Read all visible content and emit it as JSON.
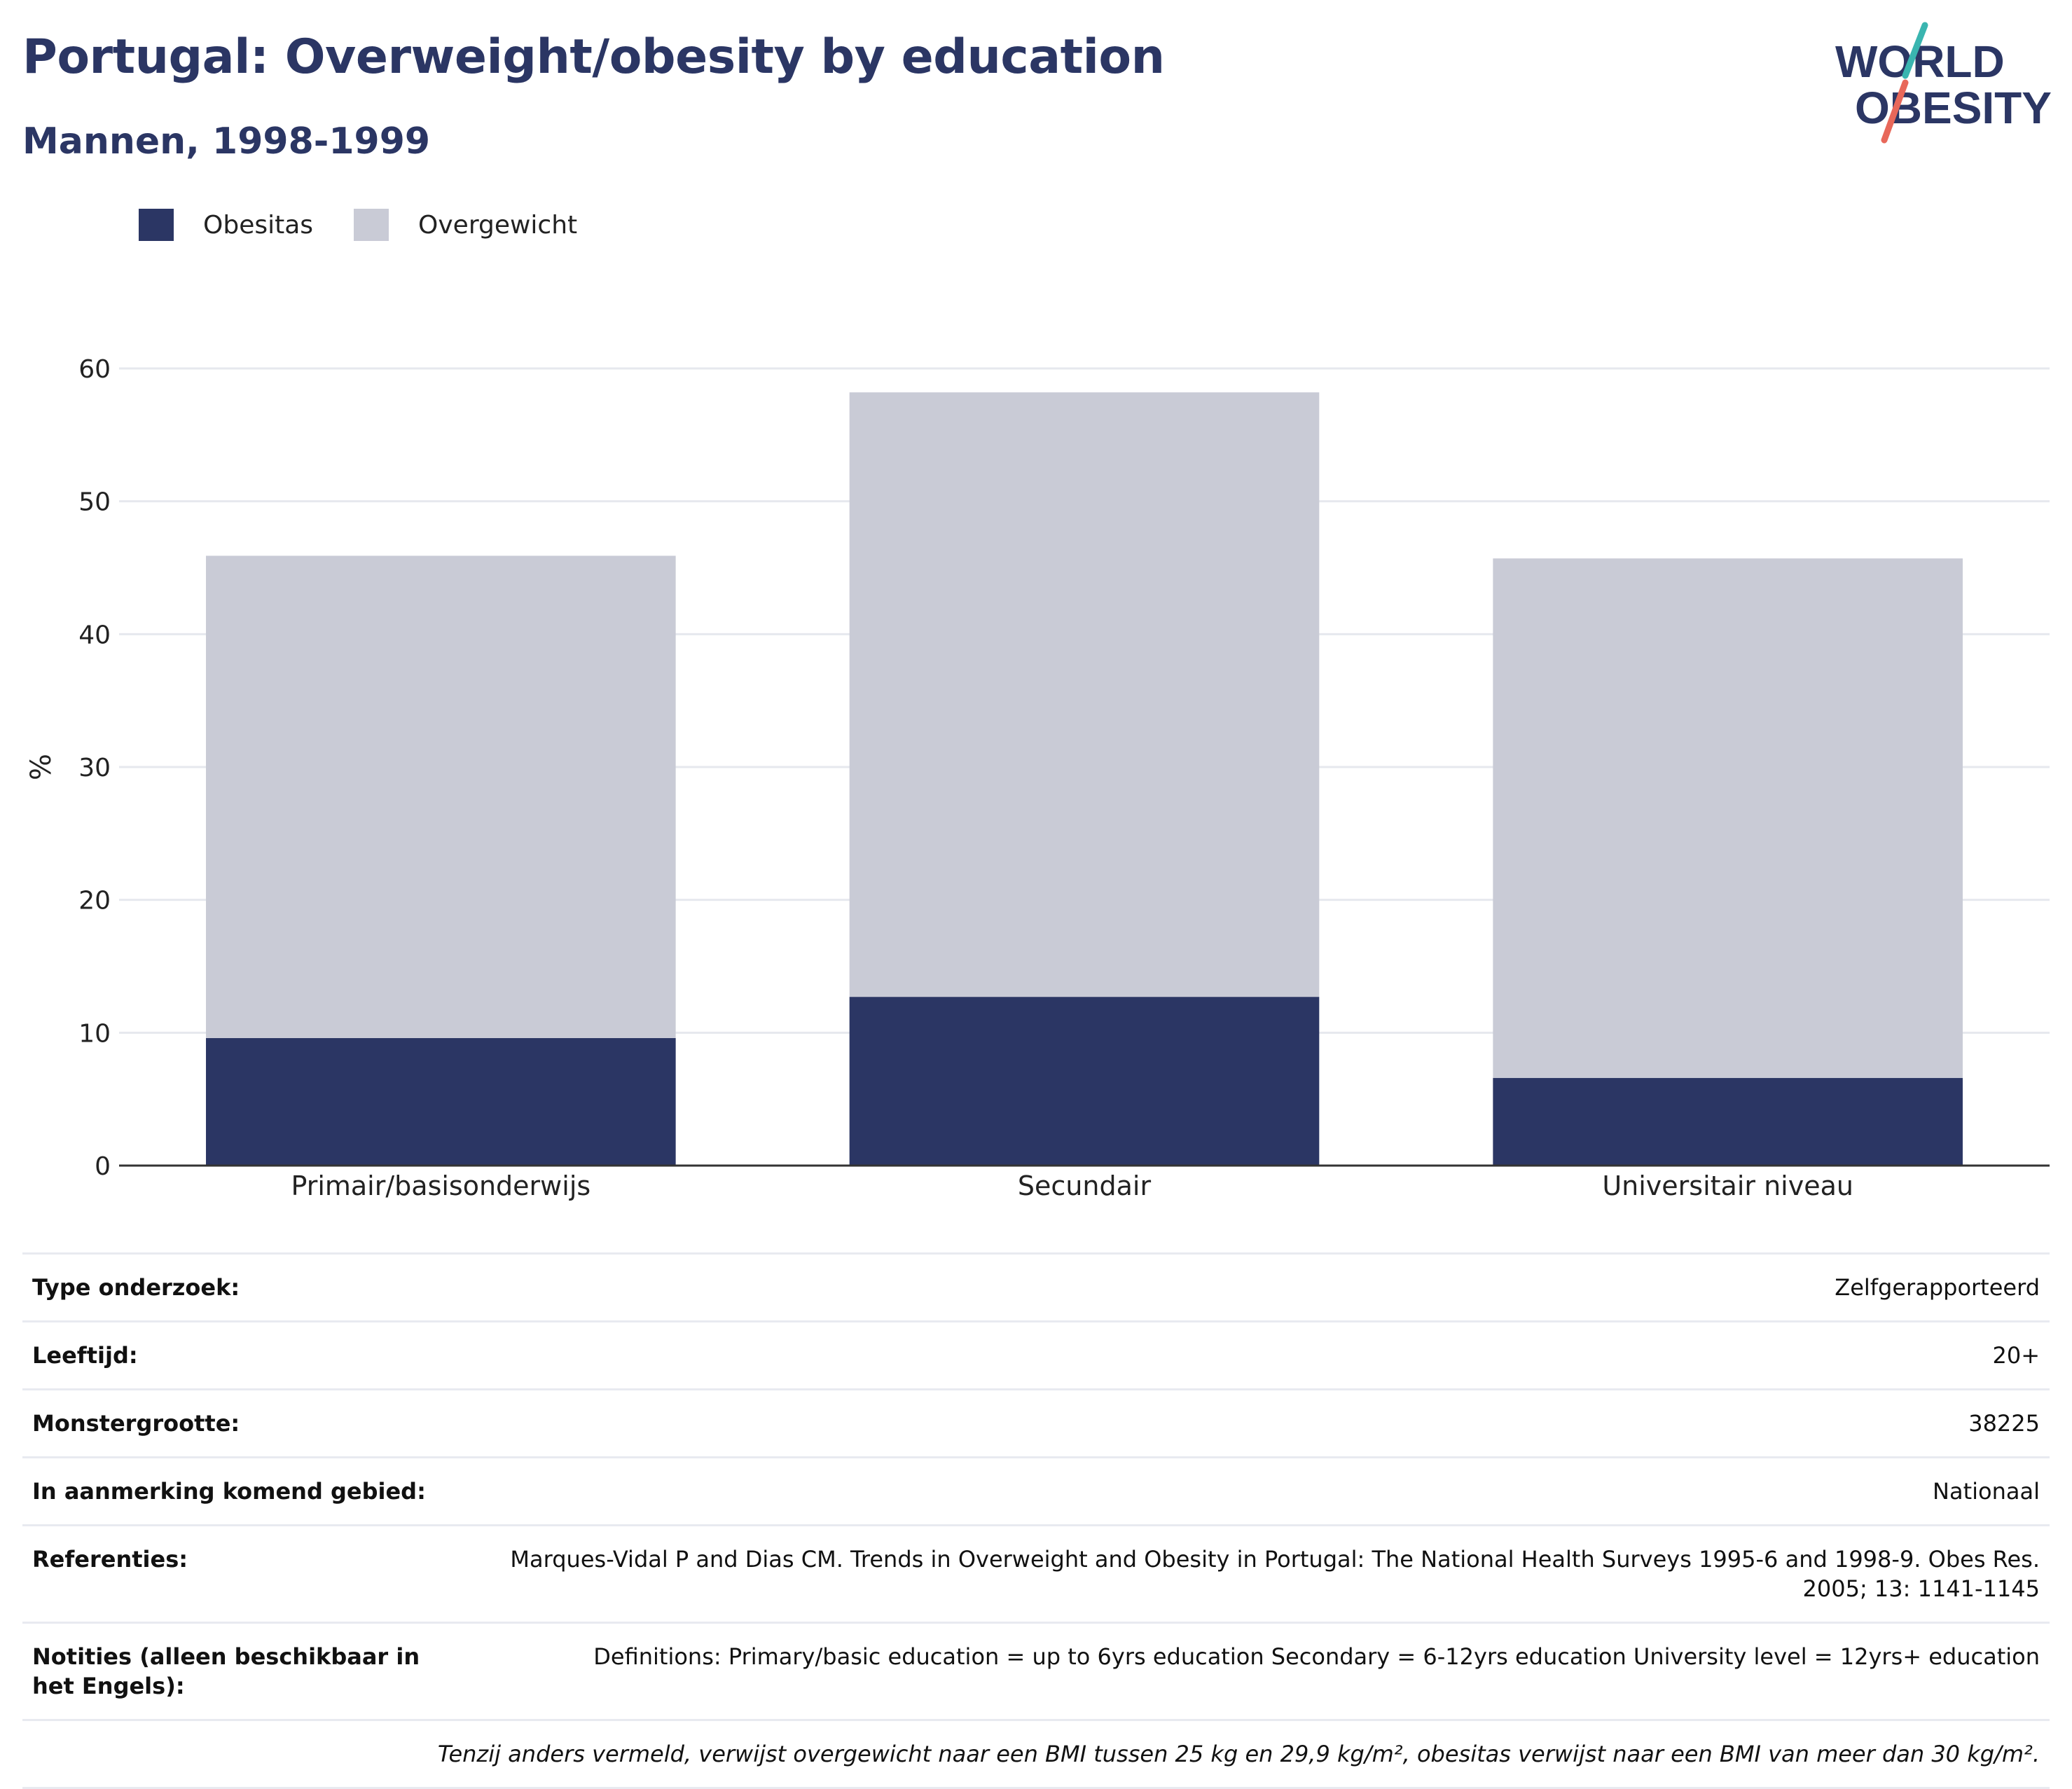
{
  "header": {
    "title": "Portugal: Overweight/obesity by education",
    "subtitle": "Mannen, 1998-1999"
  },
  "logo": {
    "line1": "WORLD",
    "line2": "OBESITY"
  },
  "colors": {
    "obesity": "#2b3664",
    "overweight": "#c9cbd6",
    "accent_teal": "#3ab5b0",
    "accent_red": "#e8685a"
  },
  "legend": [
    {
      "label": "Obesitas",
      "color": "#2b3664"
    },
    {
      "label": "Overgewicht",
      "color": "#c9cbd6"
    }
  ],
  "chart_data": {
    "type": "bar",
    "stacked": true,
    "categories": [
      "Primair/basisonderwijs",
      "Secundair",
      "Universitair niveau"
    ],
    "series": [
      {
        "name": "Obesitas",
        "values": [
          9.6,
          12.7,
          6.6
        ]
      },
      {
        "name": "Overgewicht",
        "values": [
          36.3,
          45.5,
          39.1
        ]
      }
    ],
    "ylabel": "%",
    "xlabel": "",
    "ylim": [
      0,
      60
    ],
    "yticks": [
      0,
      10,
      20,
      30,
      40,
      50,
      60
    ],
    "grid": true,
    "legend_position": "top-left"
  },
  "info": {
    "rows": [
      {
        "key": "Type onderzoek:",
        "value": "Zelfgerapporteerd"
      },
      {
        "key": "Leeftijd:",
        "value": "20+"
      },
      {
        "key": "Monstergrootte:",
        "value": "38225"
      },
      {
        "key": "In aanmerking komend gebied:",
        "value": "Nationaal"
      },
      {
        "key": "Referenties:",
        "value": "Marques-Vidal P and Dias CM. Trends in Overweight and Obesity in Portugal: The National Health Surveys 1995-6 and 1998-9. Obes Res. 2005; 13: 1141-1145"
      },
      {
        "key": "Notities (alleen beschikbaar in het Engels):",
        "value": "Definitions: Primary/basic education = up to 6yrs education Secondary = 6-12yrs education University level = 12yrs+ education"
      }
    ],
    "footnote": "Tenzij anders vermeld, verwijst overgewicht naar een BMI tussen 25 kg en 29,9 kg/m², obesitas verwijst naar een BMI van meer dan 30 kg/m²."
  }
}
